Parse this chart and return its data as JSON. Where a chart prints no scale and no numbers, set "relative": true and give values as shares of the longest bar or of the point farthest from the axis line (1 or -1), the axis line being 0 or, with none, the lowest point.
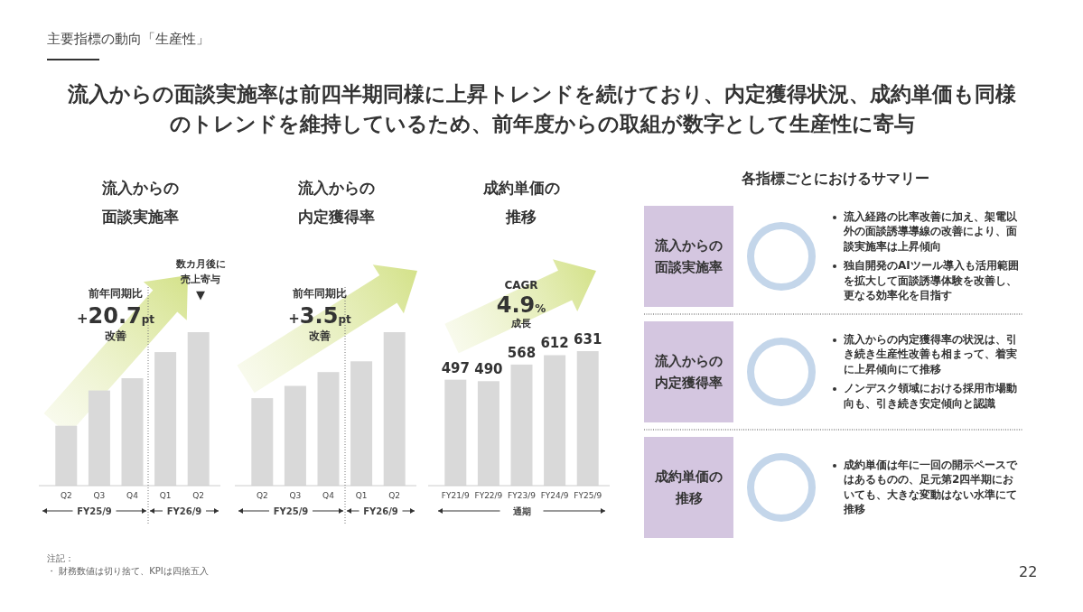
{
  "chart_data": [
    {
      "type": "other",
      "title": "主要指標の動向「生産性」",
      "subtitle": "流入からの面談実施率は前四半期同様に上昇トレンドを続けており、内定獲得状況、成約単価も同様のトレンドを維持しているため、前年度からの取組が数字として生産性に寄与",
      "annotations": [
        "注記：",
        "・ 財務数値は切り捨て、KPIは四捨五入",
        "22"
      ]
    },
    {
      "type": "bar",
      "title": "流入からの面談実施率",
      "relative": true,
      "color": "#d9d9d9",
      "categories": [
        "Q2",
        "Q3",
        "Q4",
        "Q1",
        "Q2"
      ],
      "values": [
        0.39,
        0.62,
        0.7,
        0.87,
        1
      ],
      "annotations": [
        "前年同期比",
        "+20.7pt",
        "改善",
        "数カ月後に",
        "売上寄与",
        "▼",
        "FY25/9",
        "FY26/9"
      ]
    },
    {
      "type": "bar",
      "title": "流入からの内定獲得率",
      "relative": true,
      "color": "#d9d9d9",
      "categories": [
        "Q2",
        "Q3",
        "Q4",
        "Q1",
        "Q2"
      ],
      "values": [
        0.57,
        0.65,
        0.74,
        0.81,
        1
      ],
      "annotations": [
        "前年同期比",
        "+3.5pt",
        "改善",
        "FY25/9",
        "FY26/9"
      ]
    },
    {
      "type": "bar",
      "title": "成約単価の推移",
      "data_labels": true,
      "color": "#d9d9d9",
      "categories": [
        "FY21/9",
        "FY22/9",
        "FY23/9",
        "FY24/9",
        "FY25/9"
      ],
      "values": [
        497,
        490,
        568,
        612,
        631
      ],
      "annotations": [
        "CAGR",
        "4.9%",
        "成長",
        "通期"
      ]
    },
    {
      "type": "other",
      "title": "各指標ごとにおけるサマリー",
      "categories": [
        "流入からの面談実施率",
        "流入からの内定獲得率",
        "成約単価の推移"
      ],
      "annotations": [
        "流入経路の比率改善に加え、架電以外の面談誘導導線の改善により、面談実施率は上昇傾向",
        "独自開発のAIツール導入も活用範囲を拡大して面談誘導体験を改善し、更なる効率化を目指す",
        "流入からの内定獲得率の状況は、引き続き生産性改善も相まって、着実に上昇傾向にて推移",
        "ノンデスク領域における採用市場動向も、引き続き安定傾向と認識",
        "成約単価は年に一回の開示ペースではあるものの、足元第2四半期においても、大きな変動はない水準にて推移"
      ]
    }
  ]
}
